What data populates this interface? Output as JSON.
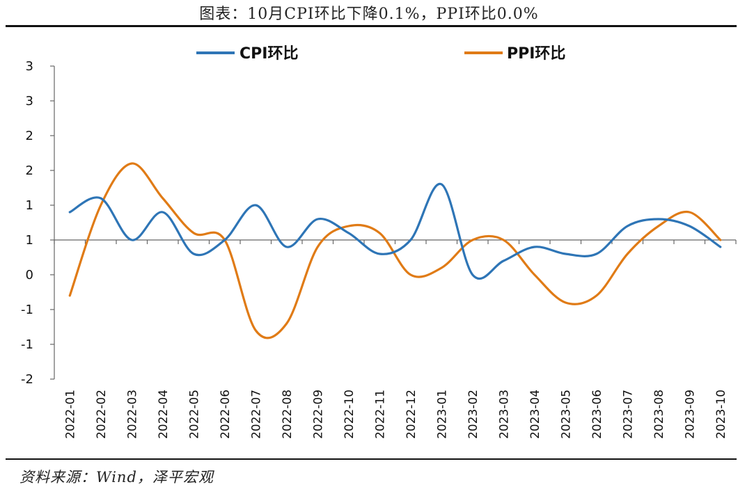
{
  "title": "图表：10月CPI环比下降0.1%，PPI环比0.0%",
  "source": "资料来源：Wind，泽平宏观",
  "chart_data": {
    "type": "line",
    "categories": [
      "2022-01",
      "2022-02",
      "2022-03",
      "2022-04",
      "2022-05",
      "2022-06",
      "2022-07",
      "2022-08",
      "2022-09",
      "2022-10",
      "2022-11",
      "2022-12",
      "2023-01",
      "2023-02",
      "2023-03",
      "2023-04",
      "2023-05",
      "2023-06",
      "2023-07",
      "2023-08",
      "2023-09",
      "2023-10"
    ],
    "series": [
      {
        "name": "CPI环比",
        "color": "#2E75B6",
        "values": [
          0.4,
          0.6,
          0.0,
          0.4,
          -0.2,
          0.0,
          0.5,
          -0.1,
          0.3,
          0.1,
          -0.2,
          0.0,
          0.8,
          -0.5,
          -0.3,
          -0.1,
          -0.2,
          -0.2,
          0.2,
          0.3,
          0.2,
          -0.1
        ]
      },
      {
        "name": "PPI环比",
        "color": "#E07B16",
        "values": [
          -0.8,
          0.5,
          1.1,
          0.6,
          0.1,
          0.0,
          -1.3,
          -1.2,
          -0.1,
          0.2,
          0.1,
          -0.5,
          -0.4,
          0.0,
          0.0,
          -0.5,
          -0.9,
          -0.8,
          -0.2,
          0.2,
          0.4,
          0.0
        ]
      }
    ],
    "y_ticks": [
      "-2",
      "-1",
      "-1",
      "0",
      "1",
      "1",
      "2",
      "2",
      "3",
      "3"
    ],
    "ylim": [
      -2.0,
      2.5
    ],
    "legend": "top",
    "grid": false
  }
}
